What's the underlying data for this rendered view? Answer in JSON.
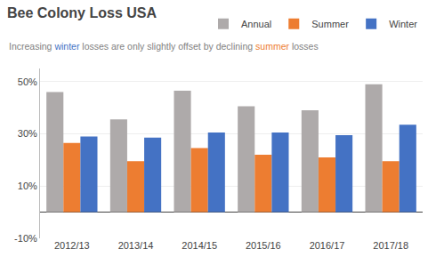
{
  "chart_data": {
    "type": "bar",
    "title": "Bee Colony Loss USA",
    "subtitle": "Increasing winter losses are only slightly offset by declining summer losses",
    "categories": [
      "2012/13",
      "2013/14",
      "2014/15",
      "2015/16",
      "2016/17",
      "2017/18"
    ],
    "series": [
      {
        "name": "Annual",
        "color": "#AEAAAA",
        "values": [
          0.46,
          0.355,
          0.465,
          0.405,
          0.39,
          0.49
        ]
      },
      {
        "name": "Summer",
        "color": "#ED7D31",
        "values": [
          0.265,
          0.195,
          0.245,
          0.22,
          0.21,
          0.195
        ]
      },
      {
        "name": "Winter",
        "color": "#4472C4",
        "values": [
          0.29,
          0.285,
          0.305,
          0.305,
          0.295,
          0.335
        ]
      }
    ],
    "ylim": [
      -0.1,
      0.55
    ],
    "yticks": [
      {
        "value": -0.1,
        "label": "-10%"
      },
      {
        "value": 0.1,
        "label": "10%"
      },
      {
        "value": 0.3,
        "label": "30%"
      },
      {
        "value": 0.5,
        "label": "50%"
      }
    ],
    "grid": true,
    "legend": "upper right"
  }
}
